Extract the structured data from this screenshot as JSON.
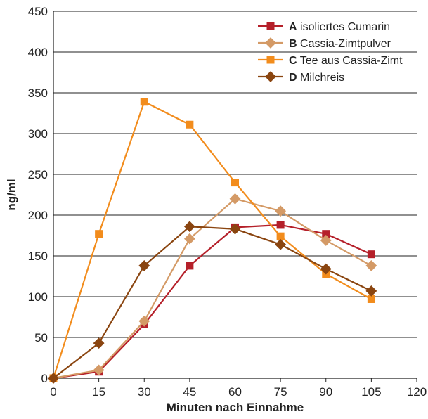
{
  "chart_data": {
    "type": "line",
    "xlabel": "Minuten nach Einnahme",
    "ylabel": "ng/ml",
    "xlim": [
      0,
      120
    ],
    "ylim": [
      0,
      450
    ],
    "xticks": [
      0,
      15,
      30,
      45,
      60,
      75,
      90,
      105,
      120
    ],
    "yticks": [
      0,
      50,
      100,
      150,
      200,
      250,
      300,
      350,
      400,
      450
    ],
    "grid": "horizontal",
    "legend_position": "top-right",
    "series": [
      {
        "letter": "A",
        "name": "isoliertes Cumarin",
        "color": "#b5202a",
        "marker": "square",
        "x": [
          0,
          15,
          30,
          45,
          60,
          75,
          90,
          105
        ],
        "values": [
          0,
          8,
          66,
          138,
          185,
          188,
          177,
          152
        ]
      },
      {
        "letter": "B",
        "name": "Cassia-Zimtpulver",
        "color": "#d49a66",
        "marker": "diamond",
        "x": [
          0,
          15,
          30,
          45,
          60,
          75,
          90,
          105
        ],
        "values": [
          0,
          10,
          70,
          171,
          220,
          205,
          169,
          138
        ]
      },
      {
        "letter": "C",
        "name": "Tee aus Cassia-Zimt",
        "color": "#f28c1c",
        "marker": "square",
        "x": [
          0,
          15,
          30,
          45,
          60,
          75,
          90,
          105
        ],
        "values": [
          0,
          177,
          339,
          311,
          240,
          174,
          128,
          97
        ]
      },
      {
        "letter": "D",
        "name": "Milchreis",
        "color": "#8a4510",
        "marker": "diamond",
        "x": [
          0,
          15,
          30,
          45,
          60,
          75,
          90,
          105
        ],
        "values": [
          0,
          43,
          138,
          186,
          183,
          164,
          134,
          107
        ]
      }
    ]
  }
}
